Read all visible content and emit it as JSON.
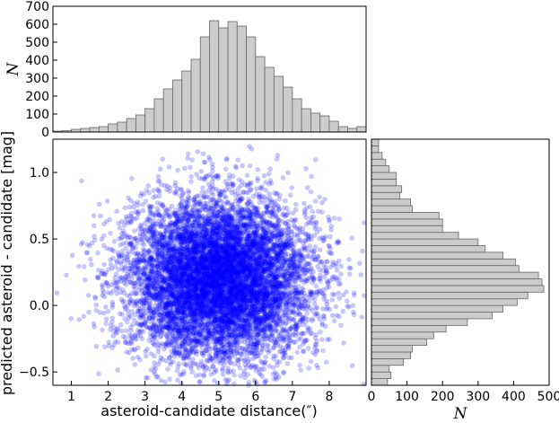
{
  "chart_data": [
    {
      "panel": "top-histogram",
      "type": "bar",
      "bin_width": 0.25,
      "x_bin_starts": [
        0.5,
        0.75,
        1.0,
        1.25,
        1.5,
        1.75,
        2.0,
        2.25,
        2.5,
        2.75,
        3.0,
        3.25,
        3.5,
        3.75,
        4.0,
        4.25,
        4.5,
        4.75,
        5.0,
        5.25,
        5.5,
        5.75,
        6.0,
        6.25,
        6.5,
        6.75,
        7.0,
        7.25,
        7.5,
        7.75,
        8.0,
        8.25,
        8.5,
        8.75
      ],
      "values": [
        5,
        8,
        15,
        20,
        25,
        30,
        45,
        55,
        75,
        95,
        130,
        185,
        240,
        290,
        340,
        405,
        530,
        620,
        580,
        615,
        590,
        530,
        420,
        360,
        310,
        250,
        185,
        130,
        105,
        90,
        60,
        30,
        20,
        30
      ],
      "xlim": [
        0.5,
        9.0
      ],
      "ylim": [
        0,
        700
      ],
      "ylabel": "N",
      "y_ticks": [
        "0",
        "100",
        "200",
        "300",
        "400",
        "500",
        "600",
        "700"
      ],
      "color": "#cccccc"
    },
    {
      "panel": "scatter",
      "type": "scatter",
      "xlabel": "asteroid-candidate distance(″)",
      "ylabel": "predicted asteroid - candidate [mag]",
      "xlim": [
        0.5,
        9.0
      ],
      "ylim": [
        -0.6,
        1.25
      ],
      "x_ticks": [
        "1",
        "2",
        "3",
        "4",
        "5",
        "6",
        "7",
        "8"
      ],
      "y_ticks": [
        "−0.5",
        "0.0",
        "0.5",
        "1.0"
      ],
      "distribution": {
        "x_mean": 5.0,
        "x_std": 1.25,
        "y_mean": 0.2,
        "y_std": 0.3,
        "n_points": 9000
      },
      "color": "#0000ff",
      "alpha": 0.22
    },
    {
      "panel": "right-histogram",
      "type": "bar",
      "orientation": "horizontal",
      "bin_width": 0.05,
      "y_bin_starts": [
        -0.6,
        -0.55,
        -0.5,
        -0.45,
        -0.4,
        -0.35,
        -0.3,
        -0.25,
        -0.2,
        -0.15,
        -0.1,
        -0.05,
        0.0,
        0.05,
        0.1,
        0.15,
        0.2,
        0.25,
        0.3,
        0.35,
        0.4,
        0.45,
        0.5,
        0.55,
        0.6,
        0.65,
        0.7,
        0.75,
        0.8,
        0.85,
        0.9,
        0.95,
        1.0,
        1.05,
        1.1,
        1.15,
        1.2
      ],
      "values": [
        45,
        55,
        50,
        90,
        110,
        115,
        155,
        175,
        210,
        270,
        340,
        370,
        410,
        440,
        485,
        480,
        470,
        415,
        405,
        370,
        320,
        300,
        245,
        200,
        200,
        190,
        115,
        110,
        80,
        85,
        70,
        70,
        50,
        40,
        30,
        20,
        20
      ],
      "xlim": [
        0,
        500
      ],
      "ylim": [
        -0.6,
        1.25
      ],
      "xlabel": "N",
      "x_ticks": [
        "0",
        "100",
        "200",
        "300",
        "400",
        "500"
      ],
      "color": "#cccccc"
    }
  ]
}
